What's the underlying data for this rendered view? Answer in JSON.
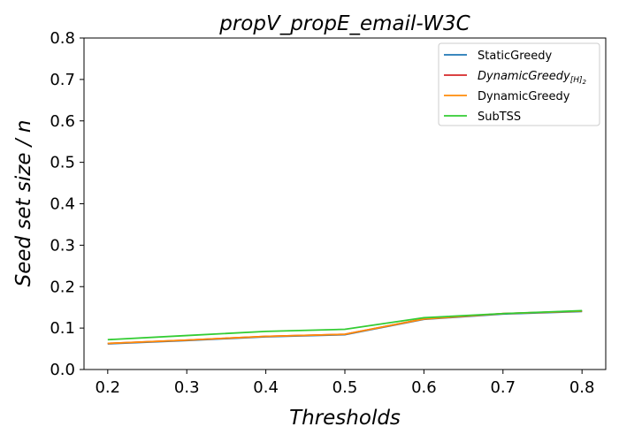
{
  "chart_data": {
    "type": "line",
    "title": "propV_propE_email-W3C",
    "xlabel": "Thresholds",
    "ylabel": "Seed set size / n",
    "x": [
      0.2,
      0.3,
      0.4,
      0.5,
      0.6,
      0.7,
      0.8
    ],
    "xlim": [
      0.17,
      0.83
    ],
    "ylim": [
      0.0,
      0.8
    ],
    "xticks": [
      "0.2",
      "0.3",
      "0.4",
      "0.5",
      "0.6",
      "0.7",
      "0.8"
    ],
    "yticks": [
      "0.0",
      "0.1",
      "0.2",
      "0.3",
      "0.4",
      "0.5",
      "0.6",
      "0.7",
      "0.8"
    ],
    "grid": false,
    "legend_position": "top-right",
    "series": [
      {
        "name": "StaticGreedy",
        "legend_base": "StaticGreedy",
        "legend_sub": "",
        "color": "#1f77b4",
        "values": [
          0.062,
          0.07,
          0.079,
          0.084,
          0.121,
          0.134,
          0.14
        ]
      },
      {
        "name": "DynamicGreedy[H]2",
        "legend_base": "DynamicGreedy",
        "legend_sub": "[H]",
        "legend_subsub": "2",
        "color": "#d62728",
        "values": [
          0.063,
          0.071,
          0.08,
          0.085,
          0.122,
          0.135,
          0.141
        ]
      },
      {
        "name": "DynamicGreedy",
        "legend_base": "DynamicGreedy",
        "legend_sub": "",
        "color": "#ff8c0a",
        "values": [
          0.063,
          0.071,
          0.08,
          0.085,
          0.122,
          0.135,
          0.141
        ]
      },
      {
        "name": "SubTSS",
        "legend_base": "SubTSS",
        "legend_sub": "",
        "color": "#33cc33",
        "values": [
          0.072,
          0.082,
          0.092,
          0.097,
          0.125,
          0.135,
          0.142
        ]
      }
    ]
  }
}
